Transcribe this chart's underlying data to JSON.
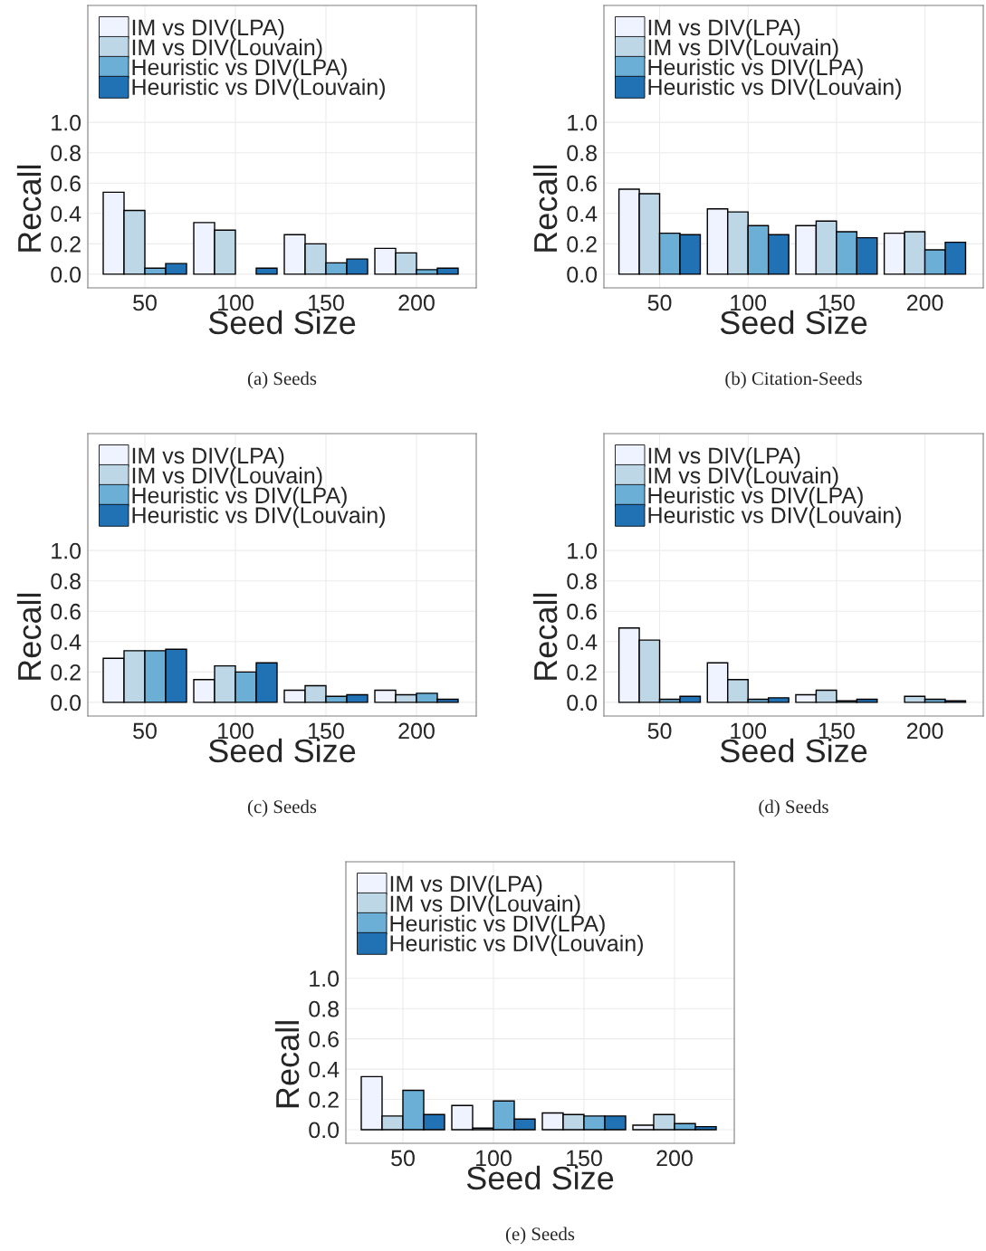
{
  "chart_data": [
    {
      "type": "bar",
      "categories": [
        "50",
        "100",
        "150",
        "200"
      ],
      "xlabel": "Seed Size",
      "ylabel": "Recall",
      "ylim": [
        -0.09,
        1.77
      ],
      "yticks": [
        {
          "value": 0,
          "label": "0.0"
        },
        {
          "value": 0.2,
          "label": "0.2"
        },
        {
          "value": 0.4,
          "label": "0.4"
        },
        {
          "value": 0.6,
          "label": "0.6"
        },
        {
          "value": 0.8,
          "label": "0.8"
        },
        {
          "value": 1,
          "label": "1.0"
        }
      ],
      "grid": true,
      "legend": "top left",
      "annotations": [
        "(a) Seeds"
      ],
      "series": [
        {
          "name": "IM vs DIV(LPA)",
          "color": "#eff3ff",
          "values": [
            0.54,
            0.34,
            0.26,
            0.17
          ]
        },
        {
          "name": "IM vs DIV(Louvain)",
          "color": "#bdd7e7",
          "values": [
            0.42,
            0.29,
            0.2,
            0.14
          ]
        },
        {
          "name": "Heuristic vs DIV(LPA)",
          "color": "#6baed6",
          "values": [
            0.04,
            0.0,
            0.075,
            0.03
          ]
        },
        {
          "name": "Heuristic vs DIV(Louvain)",
          "color": "#2171b5",
          "values": [
            0.07,
            0.04,
            0.1,
            0.04
          ]
        }
      ]
    },
    {
      "type": "bar",
      "categories": [
        "50",
        "100",
        "150",
        "200"
      ],
      "xlabel": "Seed Size",
      "ylabel": "Recall",
      "ylim": [
        -0.09,
        1.77
      ],
      "yticks": [
        {
          "value": 0,
          "label": "0.0"
        },
        {
          "value": 0.2,
          "label": "0.2"
        },
        {
          "value": 0.4,
          "label": "0.4"
        },
        {
          "value": 0.6,
          "label": "0.6"
        },
        {
          "value": 0.8,
          "label": "0.8"
        },
        {
          "value": 1,
          "label": "1.0"
        }
      ],
      "grid": true,
      "legend": "top left",
      "annotations": [
        "(b) Citation-Seeds"
      ],
      "series": [
        {
          "name": "IM vs DIV(LPA)",
          "color": "#eff3ff",
          "values": [
            0.56,
            0.43,
            0.32,
            0.27
          ]
        },
        {
          "name": "IM vs DIV(Louvain)",
          "color": "#bdd7e7",
          "values": [
            0.53,
            0.41,
            0.35,
            0.28
          ]
        },
        {
          "name": "Heuristic vs DIV(LPA)",
          "color": "#6baed6",
          "values": [
            0.27,
            0.32,
            0.28,
            0.16
          ]
        },
        {
          "name": "Heuristic vs DIV(Louvain)",
          "color": "#2171b5",
          "values": [
            0.26,
            0.26,
            0.24,
            0.21
          ]
        }
      ]
    },
    {
      "type": "bar",
      "categories": [
        "50",
        "100",
        "150",
        "200"
      ],
      "xlabel": "Seed Size",
      "ylabel": "Recall",
      "ylim": [
        -0.09,
        1.77
      ],
      "yticks": [
        {
          "value": 0,
          "label": "0.0"
        },
        {
          "value": 0.2,
          "label": "0.2"
        },
        {
          "value": 0.4,
          "label": "0.4"
        },
        {
          "value": 0.6,
          "label": "0.6"
        },
        {
          "value": 0.8,
          "label": "0.8"
        },
        {
          "value": 1,
          "label": "1.0"
        }
      ],
      "grid": true,
      "legend": "top left",
      "annotations": [
        "(c) Seeds"
      ],
      "series": [
        {
          "name": "IM vs DIV(LPA)",
          "color": "#eff3ff",
          "values": [
            0.29,
            0.15,
            0.08,
            0.08
          ]
        },
        {
          "name": "IM vs DIV(Louvain)",
          "color": "#bdd7e7",
          "values": [
            0.34,
            0.24,
            0.11,
            0.05
          ]
        },
        {
          "name": "Heuristic vs DIV(LPA)",
          "color": "#6baed6",
          "values": [
            0.34,
            0.2,
            0.04,
            0.06
          ]
        },
        {
          "name": "Heuristic vs DIV(Louvain)",
          "color": "#2171b5",
          "values": [
            0.35,
            0.26,
            0.05,
            0.02
          ]
        }
      ]
    },
    {
      "type": "bar",
      "categories": [
        "50",
        "100",
        "150",
        "200"
      ],
      "xlabel": "Seed Size",
      "ylabel": "Recall",
      "ylim": [
        -0.09,
        1.77
      ],
      "yticks": [
        {
          "value": 0,
          "label": "0.0"
        },
        {
          "value": 0.2,
          "label": "0.2"
        },
        {
          "value": 0.4,
          "label": "0.4"
        },
        {
          "value": 0.6,
          "label": "0.6"
        },
        {
          "value": 0.8,
          "label": "0.8"
        },
        {
          "value": 1,
          "label": "1.0"
        }
      ],
      "grid": true,
      "legend": "top left",
      "annotations": [
        "(d) Seeds"
      ],
      "series": [
        {
          "name": "IM vs DIV(LPA)",
          "color": "#eff3ff",
          "values": [
            0.49,
            0.26,
            0.05,
            0.0
          ]
        },
        {
          "name": "IM vs DIV(Louvain)",
          "color": "#bdd7e7",
          "values": [
            0.41,
            0.15,
            0.08,
            0.04
          ]
        },
        {
          "name": "Heuristic vs DIV(LPA)",
          "color": "#6baed6",
          "values": [
            0.02,
            0.02,
            0.01,
            0.02
          ]
        },
        {
          "name": "Heuristic vs DIV(Louvain)",
          "color": "#2171b5",
          "values": [
            0.04,
            0.03,
            0.02,
            0.01
          ]
        }
      ]
    },
    {
      "type": "bar",
      "categories": [
        "50",
        "100",
        "150",
        "200"
      ],
      "xlabel": "Seed Size",
      "ylabel": "Recall",
      "ylim": [
        -0.09,
        1.77
      ],
      "yticks": [
        {
          "value": 0,
          "label": "0.0"
        },
        {
          "value": 0.2,
          "label": "0.2"
        },
        {
          "value": 0.4,
          "label": "0.4"
        },
        {
          "value": 0.6,
          "label": "0.6"
        },
        {
          "value": 0.8,
          "label": "0.8"
        },
        {
          "value": 1,
          "label": "1.0"
        }
      ],
      "grid": true,
      "legend": "top left",
      "annotations": [
        "(e) Seeds"
      ],
      "series": [
        {
          "name": "IM vs DIV(LPA)",
          "color": "#eff3ff",
          "values": [
            0.35,
            0.16,
            0.11,
            0.03
          ]
        },
        {
          "name": "IM vs DIV(Louvain)",
          "color": "#bdd7e7",
          "values": [
            0.09,
            0.01,
            0.1,
            0.1
          ]
        },
        {
          "name": "Heuristic vs DIV(LPA)",
          "color": "#6baed6",
          "values": [
            0.26,
            0.19,
            0.09,
            0.04
          ]
        },
        {
          "name": "Heuristic vs DIV(Louvain)",
          "color": "#2171b5",
          "values": [
            0.1,
            0.07,
            0.09,
            0.02
          ]
        }
      ]
    }
  ]
}
